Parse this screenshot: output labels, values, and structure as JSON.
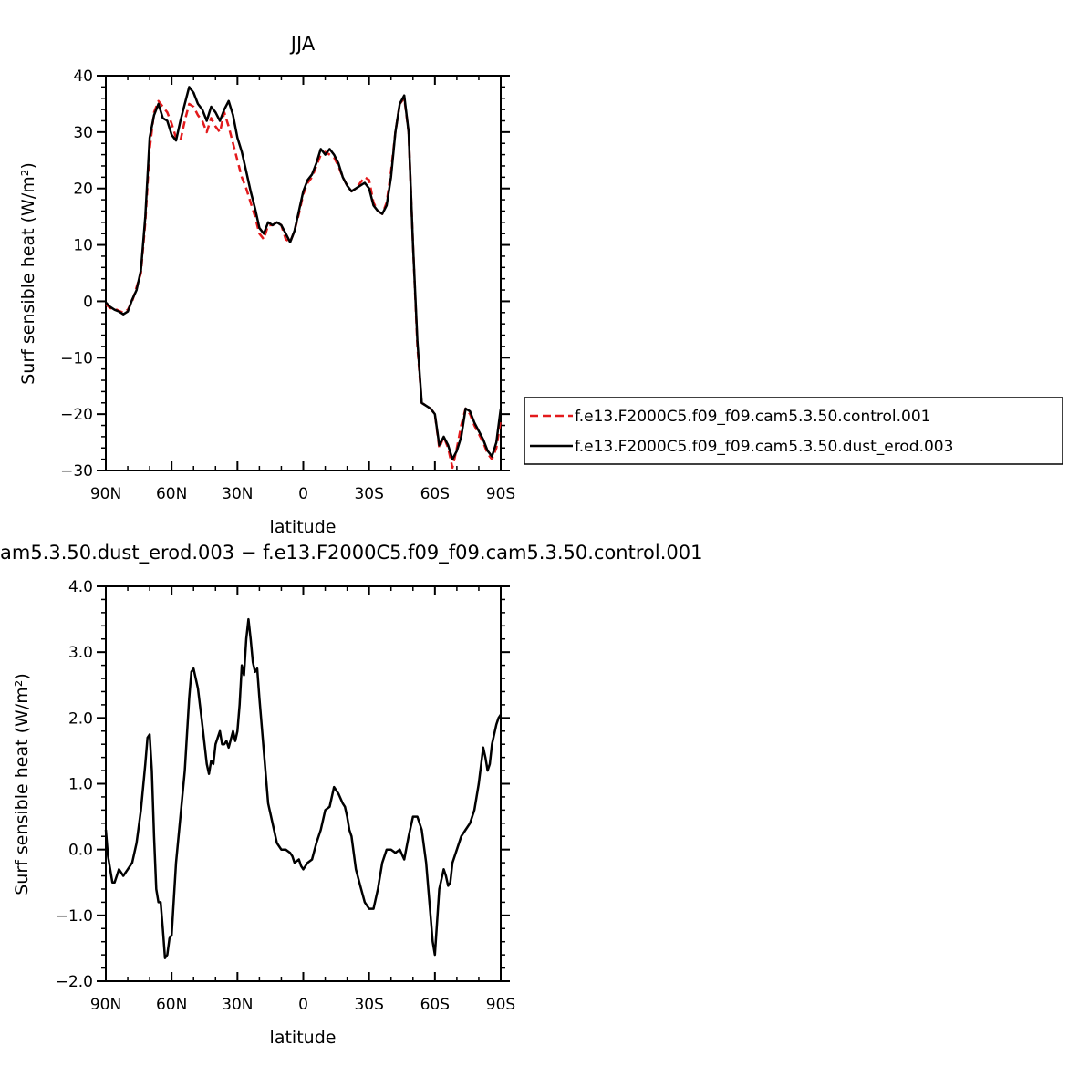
{
  "chart_data": [
    {
      "type": "line",
      "title": "JJA",
      "xlabel": "latitude",
      "ylabel": "Surf sensible heat (W/m²)",
      "xlim": [
        90,
        -90
      ],
      "ylim": [
        -30,
        40
      ],
      "x_ticks": [
        90,
        60,
        30,
        0,
        -30,
        -60,
        -90
      ],
      "x_tick_labels": [
        "90N",
        "60N",
        "30N",
        "0",
        "30S",
        "60S",
        "90S"
      ],
      "y_ticks": [
        -30,
        -20,
        -10,
        0,
        10,
        20,
        30,
        40
      ],
      "y_tick_labels": [
        "−30",
        "−20",
        "−10",
        "0",
        "10",
        "20",
        "30",
        "40"
      ],
      "grid": false,
      "legend_position": "right",
      "colors": {
        "control": "#e31a1c",
        "dust": "#000000"
      },
      "series": [
        {
          "name": "f.e13.F2000C5.f09_f09.cam5.3.50.control.001",
          "color": "#e31a1c",
          "style": "dashed",
          "x": [
            90,
            88,
            86,
            84,
            82,
            80,
            78,
            76,
            74,
            72,
            70,
            68,
            66,
            64,
            62,
            60,
            58,
            56,
            54,
            52,
            50,
            48,
            46,
            44,
            42,
            40,
            38,
            36,
            34,
            32,
            30,
            28,
            26,
            24,
            22,
            20,
            18,
            16,
            14,
            12,
            10,
            8,
            6,
            4,
            2,
            0,
            -2,
            -4,
            -6,
            -8,
            -10,
            -12,
            -14,
            -16,
            -18,
            -20,
            -22,
            -24,
            -26,
            -28,
            -30,
            -32,
            -34,
            -36,
            -38,
            -40,
            -42,
            -44,
            -46,
            -48,
            -50,
            -52,
            -54,
            -56,
            -58,
            -60,
            -62,
            -64,
            -66,
            -68,
            -70,
            -72,
            -74,
            -76,
            -78,
            -80,
            -82,
            -84,
            -86,
            -88,
            -90
          ],
          "values": [
            -0.5,
            -1.2,
            -1.3,
            -1.7,
            -2.0,
            -1.5,
            0.0,
            2.5,
            5.0,
            14.0,
            27.0,
            33.5,
            35.5,
            34.5,
            33.5,
            31.5,
            29.0,
            28.5,
            32.0,
            35.0,
            34.5,
            33.0,
            32.0,
            30.0,
            32.5,
            31.0,
            30.0,
            33.5,
            31.0,
            28.0,
            25.0,
            22.0,
            20.0,
            17.5,
            15.0,
            12.0,
            11.0,
            13.5,
            13.5,
            14.0,
            13.5,
            11.0,
            10.5,
            12.5,
            15.5,
            19.0,
            21.0,
            22.0,
            24.0,
            26.0,
            26.5,
            26.0,
            25.5,
            24.0,
            22.0,
            20.5,
            19.5,
            20.0,
            21.0,
            22.0,
            21.5,
            17.5,
            16.0,
            15.5,
            17.5,
            23.0,
            30.0,
            35.0,
            36.0,
            30.0,
            10.0,
            -8.0,
            -18.0,
            -18.5,
            -19.0,
            -20.0,
            -26.0,
            -24.0,
            -26.0,
            -29.5,
            -26.0,
            -22.0,
            -19.0,
            -20.0,
            -22.0,
            -23.5,
            -25.0,
            -27.0,
            -28.0,
            -26.0,
            -21.0
          ]
        },
        {
          "name": "f.e13.F2000C5.f09_f09.cam5.3.50.dust_erod.003",
          "color": "#000000",
          "style": "solid",
          "x": [
            90,
            88,
            86,
            84,
            82,
            80,
            78,
            76,
            74,
            72,
            70,
            68,
            66,
            64,
            62,
            60,
            58,
            56,
            54,
            52,
            50,
            48,
            46,
            44,
            42,
            40,
            38,
            36,
            34,
            32,
            30,
            28,
            26,
            24,
            22,
            20,
            18,
            16,
            14,
            12,
            10,
            8,
            6,
            4,
            2,
            0,
            -2,
            -4,
            -6,
            -8,
            -10,
            -12,
            -14,
            -16,
            -18,
            -20,
            -22,
            -24,
            -26,
            -28,
            -30,
            -32,
            -34,
            -36,
            -38,
            -40,
            -42,
            -44,
            -46,
            -48,
            -50,
            -52,
            -54,
            -56,
            -58,
            -60,
            -62,
            -64,
            -66,
            -68,
            -70,
            -72,
            -74,
            -76,
            -78,
            -80,
            -82,
            -84,
            -86,
            -88,
            -90
          ],
          "values": [
            -0.2,
            -1.0,
            -1.5,
            -1.8,
            -2.3,
            -1.8,
            0.3,
            2.0,
            5.5,
            15.0,
            29.0,
            33.0,
            35.0,
            32.5,
            32.0,
            29.5,
            28.5,
            32.0,
            35.0,
            38.0,
            37.0,
            35.0,
            34.0,
            32.0,
            34.5,
            33.5,
            32.0,
            34.0,
            35.5,
            33.0,
            29.0,
            26.5,
            23.0,
            19.5,
            16.5,
            13.0,
            12.0,
            14.0,
            13.5,
            14.0,
            13.5,
            12.0,
            10.5,
            12.5,
            16.0,
            19.5,
            21.5,
            22.5,
            24.5,
            27.0,
            26.0,
            27.0,
            26.0,
            24.5,
            22.0,
            20.5,
            19.5,
            20.0,
            20.5,
            21.0,
            20.0,
            17.0,
            16.0,
            15.5,
            17.0,
            22.0,
            30.0,
            35.0,
            36.5,
            30.0,
            10.0,
            -7.0,
            -18.0,
            -18.5,
            -19.0,
            -20.0,
            -25.5,
            -24.0,
            -25.5,
            -28.0,
            -26.5,
            -24.0,
            -19.0,
            -19.5,
            -21.5,
            -23.0,
            -24.5,
            -26.5,
            -27.5,
            -25.0,
            -19.0
          ]
        }
      ]
    },
    {
      "type": "line",
      "title": "am5.3.50.dust_erod.003 − f.e13.F2000C5.f09_f09.cam5.3.50.control.001",
      "xlabel": "latitude",
      "ylabel": "Surf sensible heat (W/m²)",
      "xlim": [
        90,
        -90
      ],
      "ylim": [
        -2.0,
        4.0
      ],
      "x_ticks": [
        90,
        60,
        30,
        0,
        -30,
        -60,
        -90
      ],
      "x_tick_labels": [
        "90N",
        "60N",
        "30N",
        "0",
        "30S",
        "60S",
        "90S"
      ],
      "y_ticks": [
        -2,
        -1,
        0,
        1,
        2,
        3,
        4
      ],
      "y_tick_labels": [
        "−2.0",
        "−1.0",
        "0.0",
        "1.0",
        "2.0",
        "3.0",
        "4.0"
      ],
      "grid": false,
      "series": [
        {
          "color": "#000000",
          "style": "solid",
          "x": [
            90,
            89,
            88,
            87,
            86,
            84,
            82,
            80,
            78,
            76,
            74,
            72,
            71,
            70,
            69,
            68,
            67,
            66,
            65,
            64,
            63,
            62,
            61,
            60,
            58,
            56,
            54,
            52,
            51,
            50,
            49,
            48,
            46,
            44,
            43,
            42,
            41,
            40,
            38,
            37,
            36,
            35,
            34,
            32,
            31,
            30,
            29,
            28,
            27,
            26,
            25,
            24,
            23,
            22,
            21,
            20,
            18,
            16,
            14,
            12,
            10,
            8,
            6,
            5,
            4,
            2,
            1,
            0,
            -2,
            -4,
            -6,
            -8,
            -10,
            -12,
            -14,
            -16,
            -18,
            -19,
            -20,
            -21,
            -22,
            -24,
            -26,
            -28,
            -30,
            -32,
            -34,
            -36,
            -38,
            -40,
            -42,
            -44,
            -46,
            -48,
            -50,
            -52,
            -54,
            -56,
            -57,
            -58,
            -59,
            -60,
            -62,
            -64,
            -65,
            -66,
            -67,
            -68,
            -70,
            -72,
            -74,
            -76,
            -78,
            -80,
            -82,
            -83,
            -84,
            -85,
            -86,
            -88,
            -89,
            -90
          ],
          "values": [
            0.3,
            -0.1,
            -0.3,
            -0.5,
            -0.5,
            -0.3,
            -0.4,
            -0.3,
            -0.2,
            0.1,
            0.6,
            1.3,
            1.7,
            1.75,
            1.2,
            0.2,
            -0.6,
            -0.8,
            -0.8,
            -1.2,
            -1.65,
            -1.6,
            -1.35,
            -1.3,
            -0.2,
            0.5,
            1.2,
            2.3,
            2.7,
            2.75,
            2.6,
            2.45,
            1.9,
            1.3,
            1.15,
            1.35,
            1.3,
            1.6,
            1.8,
            1.6,
            1.6,
            1.65,
            1.55,
            1.8,
            1.65,
            1.8,
            2.2,
            2.8,
            2.65,
            3.2,
            3.5,
            3.2,
            2.85,
            2.7,
            2.75,
            2.3,
            1.5,
            0.7,
            0.4,
            0.1,
            0.0,
            0.0,
            -0.05,
            -0.1,
            -0.2,
            -0.15,
            -0.25,
            -0.3,
            -0.2,
            -0.15,
            0.1,
            0.3,
            0.6,
            0.65,
            0.95,
            0.85,
            0.7,
            0.65,
            0.5,
            0.3,
            0.2,
            -0.3,
            -0.55,
            -0.8,
            -0.9,
            -0.9,
            -0.6,
            -0.2,
            0.0,
            0.0,
            -0.05,
            0.0,
            -0.15,
            0.2,
            0.5,
            0.5,
            0.3,
            -0.2,
            -0.6,
            -1.0,
            -1.4,
            -1.6,
            -0.6,
            -0.3,
            -0.4,
            -0.55,
            -0.5,
            -0.2,
            0.0,
            0.2,
            0.3,
            0.4,
            0.6,
            1.0,
            1.55,
            1.4,
            1.2,
            1.3,
            1.6,
            1.9,
            2.0,
            2.05
          ]
        }
      ]
    }
  ]
}
